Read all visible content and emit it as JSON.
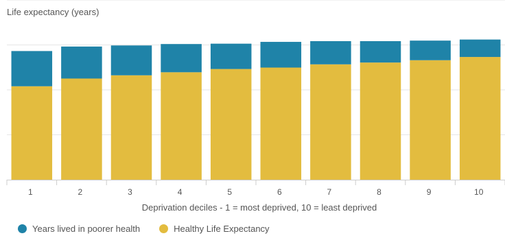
{
  "chart_data": {
    "type": "bar",
    "stacked": true,
    "title": "",
    "ylabel": "Life expectancy (years)",
    "xlabel": "Deprivation deciles - 1 = most deprived, 10 = least deprived",
    "categories": [
      "1",
      "2",
      "3",
      "4",
      "5",
      "6",
      "7",
      "8",
      "9",
      "10"
    ],
    "ylim": [
      0,
      100
    ],
    "grid": true,
    "series": [
      {
        "name": "Healthy Life Expectancy",
        "color": "#e3bc3f",
        "values": [
          52.0,
          56.3,
          58.1,
          59.8,
          61.6,
          62.4,
          64.2,
          65.2,
          66.5,
          68.3
        ]
      },
      {
        "name": "Years lived in poorer health",
        "color": "#1f83a8",
        "values": [
          19.6,
          17.8,
          16.6,
          15.7,
          14.1,
          14.3,
          12.9,
          11.9,
          10.9,
          9.7
        ]
      }
    ],
    "legend_order": [
      "Years lived in poorer health",
      "Healthy Life Expectancy"
    ],
    "legend_position": "bottom-left"
  }
}
